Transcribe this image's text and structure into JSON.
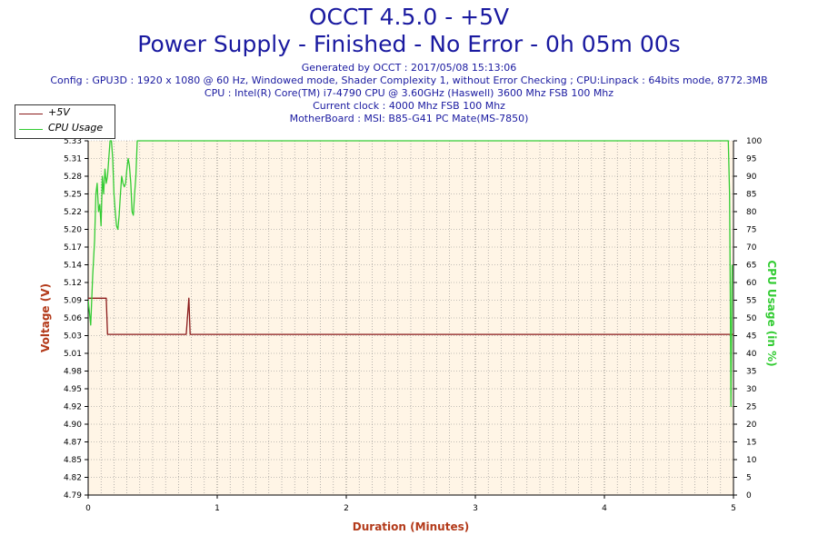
{
  "title_line1": "OCCT 4.5.0 - +5V",
  "title_line2": "Power Supply - Finished - No Error - 0h 05m 00s",
  "info_lines": [
    "Generated by OCCT : 2017/05/08 15:13:06",
    "Config : GPU3D : 1920 x 1080 @ 60 Hz, Windowed mode, Shader Complexity 1, without Error Checking ; CPU:Linpack : 64bits mode, 8772.3MB",
    "CPU : Intel(R) Core(TM) i7-4790 CPU @ 3.60GHz (Haswell) 3600 Mhz FSB 100 Mhz",
    "Current clock : 4000 Mhz FSB 100 Mhz",
    "MotherBoard : MSI: B85-G41 PC Mate(MS-7850)"
  ],
  "colors": {
    "voltage": "#8b1a1a",
    "cpu": "#33cc33",
    "title": "#1a1aa0",
    "plot_bg": "#fff5e6",
    "grid": "#888888",
    "axis_title": "#b33a1a"
  },
  "chart_data": {
    "type": "line",
    "xlabel": "Duration (Minutes)",
    "ylabel_left": "Voltage (V)",
    "ylabel_right": "CPU Usage (in %)",
    "xlim": [
      0,
      5
    ],
    "ylim_left": [
      4.79,
      5.33
    ],
    "ylim_right": [
      0,
      100
    ],
    "x_ticks": [
      "0",
      "1",
      "2",
      "3",
      "4",
      "5"
    ],
    "y_ticks_left": [
      "4.79",
      "4.82",
      "4.85",
      "4.87",
      "4.90",
      "4.92",
      "4.95",
      "4.98",
      "5.01",
      "5.03",
      "5.06",
      "5.09",
      "5.12",
      "5.14",
      "5.17",
      "5.20",
      "5.22",
      "5.25",
      "5.28",
      "5.31",
      "5.33"
    ],
    "y_ticks_right": [
      "0",
      "5",
      "10",
      "15",
      "20",
      "25",
      "30",
      "35",
      "40",
      "45",
      "50",
      "55",
      "60",
      "65",
      "70",
      "75",
      "80",
      "85",
      "90",
      "95",
      "100"
    ],
    "grid": true,
    "legend_position": "top-left",
    "series": [
      {
        "name": "+5V",
        "axis": "left",
        "x": [
          0,
          0.05,
          0.1,
          0.14,
          0.15,
          0.76,
          0.78,
          0.79,
          0.8,
          5.0
        ],
        "y": [
          5.09,
          5.09,
          5.09,
          5.09,
          5.035,
          5.035,
          5.09,
          5.035,
          5.035,
          5.035
        ]
      },
      {
        "name": "CPU Usage",
        "axis": "right",
        "x": [
          0,
          0.02,
          0.035,
          0.05,
          0.06,
          0.07,
          0.08,
          0.09,
          0.1,
          0.11,
          0.12,
          0.13,
          0.14,
          0.15,
          0.16,
          0.17,
          0.18,
          0.19,
          0.2,
          0.21,
          0.22,
          0.23,
          0.24,
          0.25,
          0.26,
          0.27,
          0.28,
          0.29,
          0.3,
          0.31,
          0.32,
          0.33,
          0.34,
          0.35,
          0.36,
          0.37,
          0.38,
          0.39,
          0.4,
          0.41,
          0.42,
          0.5,
          1.0,
          2.0,
          3.0,
          4.0,
          4.9,
          4.95,
          4.96,
          4.97,
          4.975,
          4.98,
          4.985,
          4.99
        ],
        "y": [
          55,
          48,
          62,
          72,
          85,
          88,
          80,
          82,
          76,
          90,
          85,
          92,
          88,
          90,
          95,
          100,
          100,
          95,
          85,
          80,
          76,
          75,
          79,
          85,
          90,
          88,
          87,
          88,
          92,
          95,
          93,
          88,
          80,
          79,
          85,
          90,
          100,
          100,
          100,
          100,
          100,
          100,
          100,
          100,
          100,
          100,
          100,
          100,
          100,
          85,
          60,
          25,
          45,
          65
        ]
      }
    ]
  }
}
